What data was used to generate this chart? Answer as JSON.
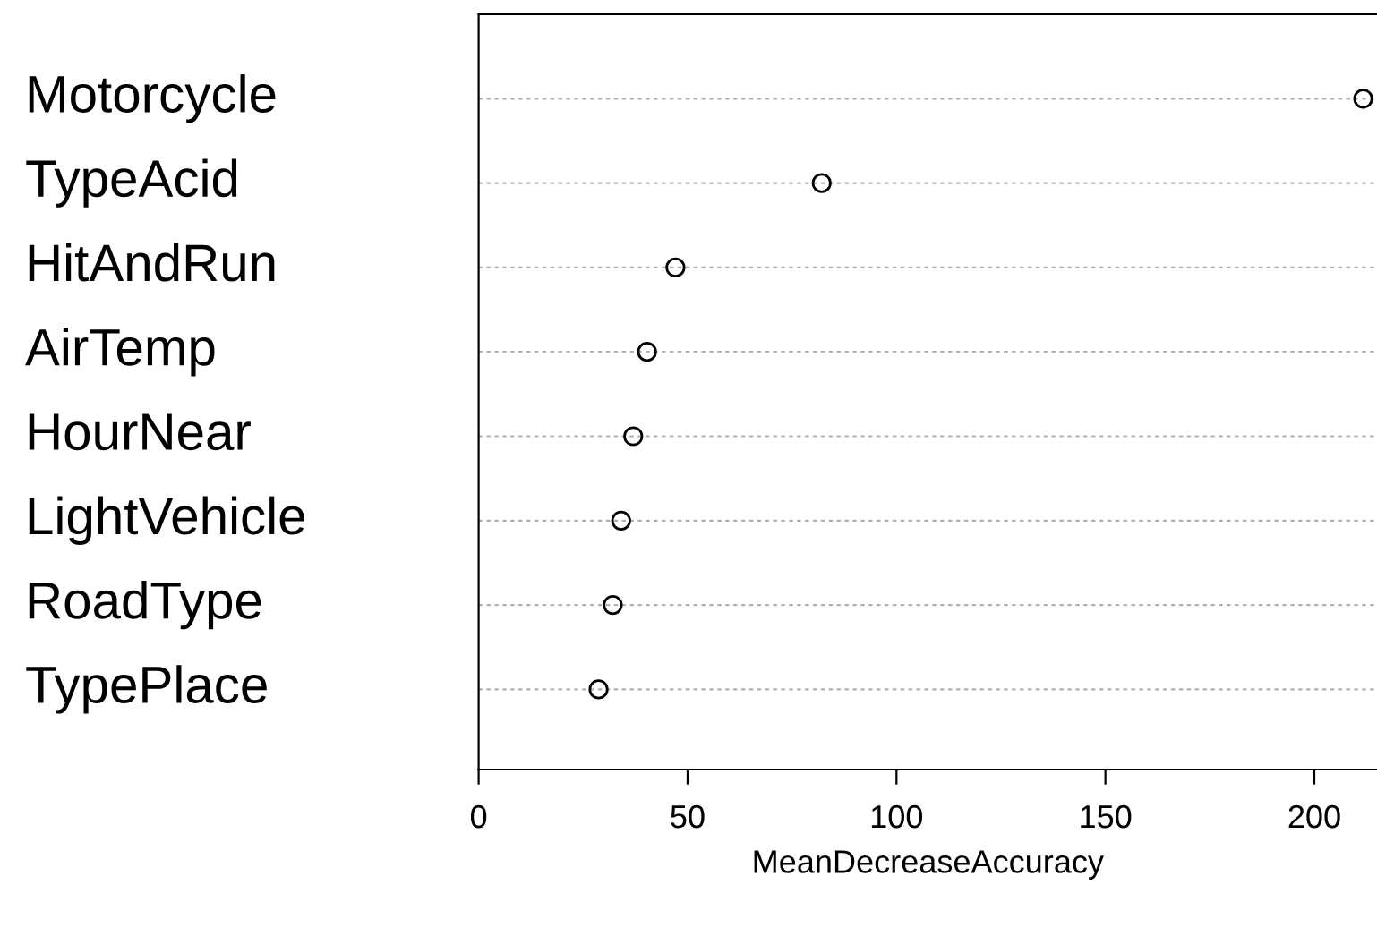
{
  "chart_data": {
    "type": "scatter",
    "orientation": "horizontal",
    "xlabel": "MeanDecreaseAccuracy",
    "categories": [
      "Motorcycle",
      "TypeAcid",
      "HitAndRun",
      "AirTemp",
      "HourNear",
      "LightVehicle",
      "RoadType",
      "TypePlace"
    ],
    "values": [
      211.7,
      82.1,
      47.1,
      40.3,
      37.0,
      34.1,
      32.1,
      28.7
    ],
    "color": "#000000",
    "marker": "circle",
    "grid": "y",
    "xlim": [
      0,
      215
    ],
    "xticks": [
      0,
      50,
      100,
      150,
      200
    ]
  }
}
